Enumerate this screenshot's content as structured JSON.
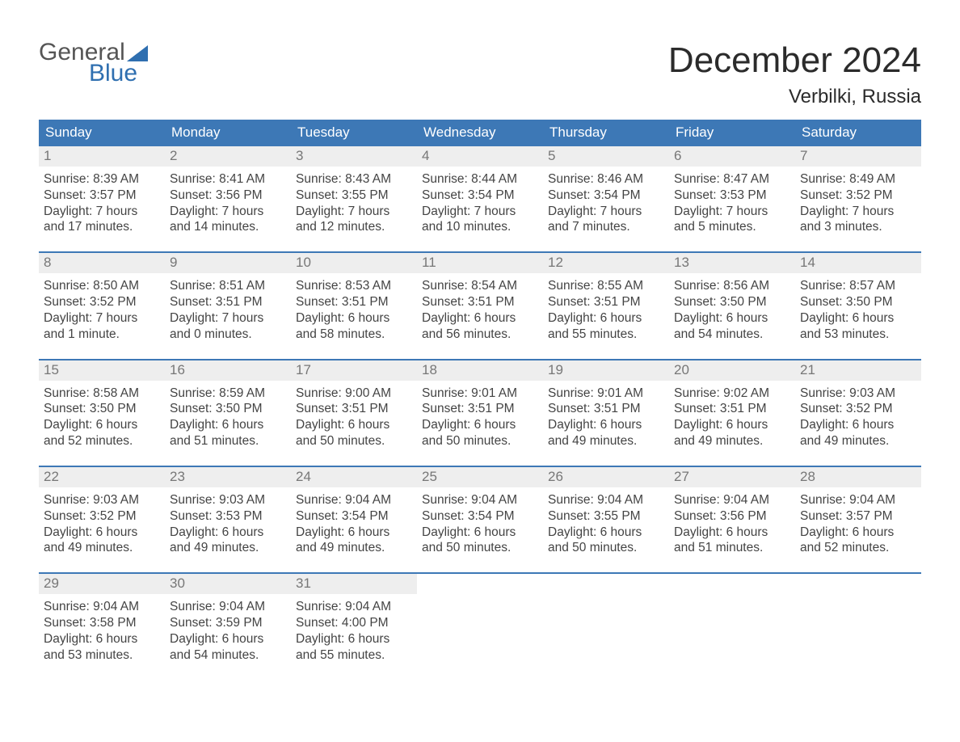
{
  "brand": {
    "word1": "General",
    "word2": "Blue",
    "logo_gray": "#555555",
    "logo_blue": "#2f6fb0"
  },
  "title": "December 2024",
  "location": "Verbilki, Russia",
  "colors": {
    "header_bg": "#3d78b6",
    "header_text": "#ffffff",
    "daynum_bg": "#eeeeee",
    "daynum_text": "#777777",
    "body_text": "#444444",
    "week_border": "#3d78b6",
    "page_bg": "#ffffff"
  },
  "dow": [
    "Sunday",
    "Monday",
    "Tuesday",
    "Wednesday",
    "Thursday",
    "Friday",
    "Saturday"
  ],
  "days": [
    {
      "n": 1,
      "sr": "8:39 AM",
      "ss": "3:57 PM",
      "dl": "7 hours and 17 minutes."
    },
    {
      "n": 2,
      "sr": "8:41 AM",
      "ss": "3:56 PM",
      "dl": "7 hours and 14 minutes."
    },
    {
      "n": 3,
      "sr": "8:43 AM",
      "ss": "3:55 PM",
      "dl": "7 hours and 12 minutes."
    },
    {
      "n": 4,
      "sr": "8:44 AM",
      "ss": "3:54 PM",
      "dl": "7 hours and 10 minutes."
    },
    {
      "n": 5,
      "sr": "8:46 AM",
      "ss": "3:54 PM",
      "dl": "7 hours and 7 minutes."
    },
    {
      "n": 6,
      "sr": "8:47 AM",
      "ss": "3:53 PM",
      "dl": "7 hours and 5 minutes."
    },
    {
      "n": 7,
      "sr": "8:49 AM",
      "ss": "3:52 PM",
      "dl": "7 hours and 3 minutes."
    },
    {
      "n": 8,
      "sr": "8:50 AM",
      "ss": "3:52 PM",
      "dl": "7 hours and 1 minute."
    },
    {
      "n": 9,
      "sr": "8:51 AM",
      "ss": "3:51 PM",
      "dl": "7 hours and 0 minutes."
    },
    {
      "n": 10,
      "sr": "8:53 AM",
      "ss": "3:51 PM",
      "dl": "6 hours and 58 minutes."
    },
    {
      "n": 11,
      "sr": "8:54 AM",
      "ss": "3:51 PM",
      "dl": "6 hours and 56 minutes."
    },
    {
      "n": 12,
      "sr": "8:55 AM",
      "ss": "3:51 PM",
      "dl": "6 hours and 55 minutes."
    },
    {
      "n": 13,
      "sr": "8:56 AM",
      "ss": "3:50 PM",
      "dl": "6 hours and 54 minutes."
    },
    {
      "n": 14,
      "sr": "8:57 AM",
      "ss": "3:50 PM",
      "dl": "6 hours and 53 minutes."
    },
    {
      "n": 15,
      "sr": "8:58 AM",
      "ss": "3:50 PM",
      "dl": "6 hours and 52 minutes."
    },
    {
      "n": 16,
      "sr": "8:59 AM",
      "ss": "3:50 PM",
      "dl": "6 hours and 51 minutes."
    },
    {
      "n": 17,
      "sr": "9:00 AM",
      "ss": "3:51 PM",
      "dl": "6 hours and 50 minutes."
    },
    {
      "n": 18,
      "sr": "9:01 AM",
      "ss": "3:51 PM",
      "dl": "6 hours and 50 minutes."
    },
    {
      "n": 19,
      "sr": "9:01 AM",
      "ss": "3:51 PM",
      "dl": "6 hours and 49 minutes."
    },
    {
      "n": 20,
      "sr": "9:02 AM",
      "ss": "3:51 PM",
      "dl": "6 hours and 49 minutes."
    },
    {
      "n": 21,
      "sr": "9:03 AM",
      "ss": "3:52 PM",
      "dl": "6 hours and 49 minutes."
    },
    {
      "n": 22,
      "sr": "9:03 AM",
      "ss": "3:52 PM",
      "dl": "6 hours and 49 minutes."
    },
    {
      "n": 23,
      "sr": "9:03 AM",
      "ss": "3:53 PM",
      "dl": "6 hours and 49 minutes."
    },
    {
      "n": 24,
      "sr": "9:04 AM",
      "ss": "3:54 PM",
      "dl": "6 hours and 49 minutes."
    },
    {
      "n": 25,
      "sr": "9:04 AM",
      "ss": "3:54 PM",
      "dl": "6 hours and 50 minutes."
    },
    {
      "n": 26,
      "sr": "9:04 AM",
      "ss": "3:55 PM",
      "dl": "6 hours and 50 minutes."
    },
    {
      "n": 27,
      "sr": "9:04 AM",
      "ss": "3:56 PM",
      "dl": "6 hours and 51 minutes."
    },
    {
      "n": 28,
      "sr": "9:04 AM",
      "ss": "3:57 PM",
      "dl": "6 hours and 52 minutes."
    },
    {
      "n": 29,
      "sr": "9:04 AM",
      "ss": "3:58 PM",
      "dl": "6 hours and 53 minutes."
    },
    {
      "n": 30,
      "sr": "9:04 AM",
      "ss": "3:59 PM",
      "dl": "6 hours and 54 minutes."
    },
    {
      "n": 31,
      "sr": "9:04 AM",
      "ss": "4:00 PM",
      "dl": "6 hours and 55 minutes."
    }
  ],
  "labels": {
    "sunrise": "Sunrise: ",
    "sunset": "Sunset: ",
    "daylight": "Daylight: "
  },
  "layout": {
    "columns": 7,
    "start_dow_index": 0,
    "cell_font_size": 15.5,
    "header_font_size": 17,
    "title_font_size": 44,
    "location_font_size": 24
  }
}
